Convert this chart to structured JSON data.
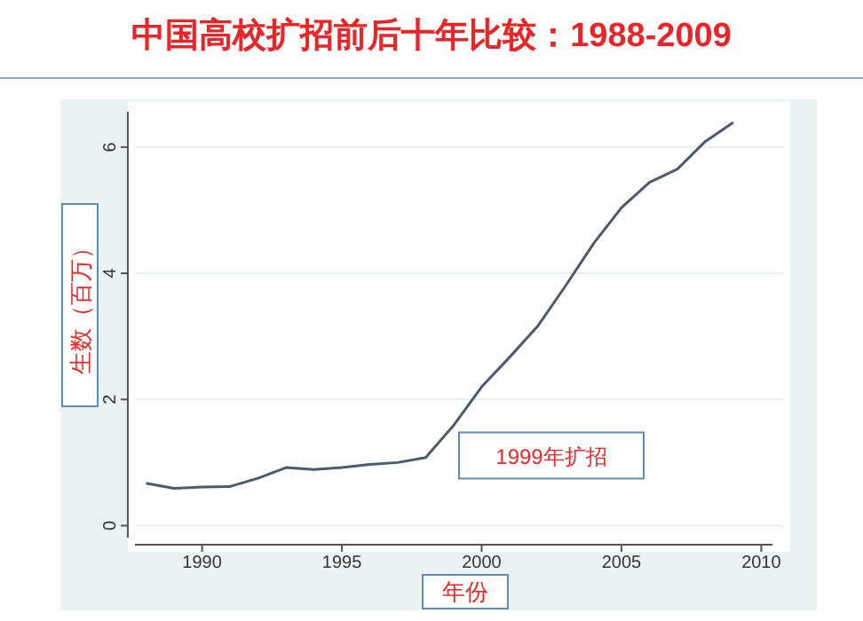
{
  "chart_data": {
    "type": "line",
    "title": "中国高校扩招前后十年比较：1988-2009",
    "xlabel": "年份",
    "ylabel": "生数（百万）",
    "x": [
      1988,
      1989,
      1990,
      1991,
      1992,
      1993,
      1994,
      1995,
      1996,
      1997,
      1998,
      1999,
      2000,
      2001,
      2002,
      2003,
      2004,
      2005,
      2006,
      2007,
      2008,
      2009
    ],
    "series": [
      {
        "color": "#4a5a70",
        "values": [
          0.67,
          0.59,
          0.61,
          0.62,
          0.75,
          0.92,
          0.89,
          0.92,
          0.97,
          1.0,
          1.08,
          1.59,
          2.2,
          2.67,
          3.16,
          3.8,
          4.47,
          5.04,
          5.44,
          5.65,
          6.09,
          6.39
        ]
      }
    ],
    "xlim": [
      1987.6,
      2010.4
    ],
    "ylim": [
      -0.19,
      6.56
    ],
    "xticks": [
      1990,
      1995,
      2000,
      2005,
      2010
    ],
    "yticks": [
      0,
      2,
      4,
      6
    ],
    "grid": "y",
    "annotations": [
      {
        "text": "1999年扩招",
        "x": 1999,
        "y": 1.59
      }
    ]
  }
}
